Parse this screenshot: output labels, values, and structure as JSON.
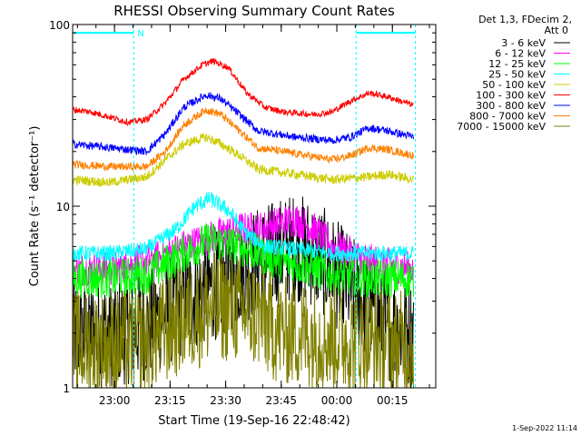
{
  "chart_data": {
    "type": "line",
    "title": "RHESSI Observing Summary Count Rates",
    "xlabel": "Start Time (19-Sep-16 22:48:42)",
    "ylabel": "Count Rate (s⁻¹ detector⁻¹)",
    "y_scale": "log",
    "ylim": [
      1,
      100
    ],
    "x_unit": "minutes after 22:48:42",
    "xlim": [
      0,
      98
    ],
    "x_ticks": [
      {
        "label": "23:00",
        "value": 11.3
      },
      {
        "label": "23:15",
        "value": 26.3
      },
      {
        "label": "23:30",
        "value": 41.3
      },
      {
        "label": "23:45",
        "value": 56.3
      },
      {
        "label": "00:00",
        "value": 71.3
      },
      {
        "label": "00:15",
        "value": 86.3
      }
    ],
    "y_ticks": [
      {
        "label": "1",
        "value": 1
      },
      {
        "label": "10",
        "value": 10
      },
      {
        "label": "100",
        "value": 100
      }
    ],
    "legend_header": [
      "Det 1,3, FDecim 2,",
      "Att 0"
    ],
    "data_start_min": 0,
    "data_end_min": 92,
    "gap_markers_min": [
      16.5,
      76.5,
      92.5
    ],
    "flag_bars": [
      {
        "x_start": 0,
        "x_end": 16.5,
        "value": 90,
        "label": "N",
        "color": "#00ffff"
      },
      {
        "x_start": 76.5,
        "x_end": 92.5,
        "value": 90,
        "label": "",
        "color": "#00ffff"
      }
    ],
    "series": [
      {
        "name": "3 - 6 keV",
        "color": "#000000",
        "noise": 0.7,
        "x": [
          0,
          10,
          20,
          30,
          40,
          45,
          50,
          55,
          60,
          65,
          70,
          75,
          80,
          85,
          92
        ],
        "y": [
          2.0,
          2.0,
          2.2,
          3.0,
          3.8,
          4.3,
          5.0,
          5.5,
          6.0,
          5.5,
          4.5,
          3.5,
          2.8,
          2.2,
          2.0
        ]
      },
      {
        "name": "6 - 12 keV",
        "color": "#ff00ff",
        "noise": 0.22,
        "x": [
          0,
          10,
          20,
          30,
          40,
          45,
          50,
          55,
          60,
          65,
          70,
          75,
          80,
          85,
          92
        ],
        "y": [
          4.5,
          4.5,
          5.0,
          6.0,
          7.0,
          7.5,
          7.5,
          8.0,
          8.5,
          7.5,
          6.0,
          5.5,
          5.0,
          4.8,
          4.5
        ]
      },
      {
        "name": "12 - 25 keV",
        "color": "#00ff00",
        "noise": 0.25,
        "x": [
          0,
          10,
          20,
          30,
          37,
          45,
          50,
          55,
          60,
          65,
          70,
          80,
          92
        ],
        "y": [
          4.0,
          4.0,
          4.2,
          5.5,
          6.5,
          6.0,
          5.5,
          5.0,
          4.8,
          4.5,
          4.2,
          4.0,
          4.0
        ]
      },
      {
        "name": "25 - 50 keV",
        "color": "#00ffff",
        "noise": 0.1,
        "x": [
          0,
          10,
          20,
          28,
          33,
          37,
          42,
          47,
          52,
          60,
          70,
          80,
          92
        ],
        "y": [
          5.5,
          5.5,
          5.8,
          7.5,
          10.0,
          11.0,
          9.5,
          7.0,
          6.0,
          5.8,
          5.5,
          5.5,
          5.5
        ]
      },
      {
        "name": "50 - 100 keV",
        "color": "#cccc00",
        "noise": 0.06,
        "x": [
          0,
          10,
          20,
          25,
          30,
          36,
          40,
          45,
          50,
          60,
          70,
          80,
          85,
          92
        ],
        "y": [
          14,
          13.5,
          14.5,
          18,
          22,
          24,
          22,
          19,
          16,
          15,
          14,
          14.5,
          15,
          14
        ]
      },
      {
        "name": "100 - 300 keV",
        "color": "#ff0000",
        "noise": 0.04,
        "x": [
          0,
          5,
          10,
          15,
          20,
          25,
          30,
          35,
          38,
          42,
          47,
          52,
          57,
          65,
          70,
          75,
          80,
          85,
          92
        ],
        "y": [
          34,
          33,
          31,
          29,
          30,
          37,
          50,
          60,
          63,
          58,
          42,
          35,
          33,
          32,
          33,
          38,
          42,
          40,
          36
        ]
      },
      {
        "name": "300 - 800 keV",
        "color": "#0000ff",
        "noise": 0.05,
        "x": [
          0,
          10,
          20,
          25,
          30,
          36,
          40,
          45,
          50,
          60,
          70,
          75,
          80,
          85,
          92
        ],
        "y": [
          22,
          21,
          20,
          25,
          35,
          41,
          39,
          32,
          26,
          24,
          23,
          24,
          27,
          26,
          24
        ]
      },
      {
        "name": "800 - 7000 keV",
        "color": "#ff8000",
        "noise": 0.05,
        "x": [
          0,
          10,
          20,
          25,
          30,
          36,
          40,
          45,
          50,
          60,
          70,
          75,
          80,
          85,
          92
        ],
        "y": [
          17,
          16.5,
          16.5,
          20,
          28,
          34,
          32,
          26,
          21,
          19.5,
          18,
          19,
          21,
          20.5,
          19
        ]
      },
      {
        "name": "7000 - 15000 keV",
        "color": "#808000",
        "noise": 0.7,
        "x": [
          0,
          10,
          20,
          30,
          40,
          45,
          50,
          55,
          60,
          70,
          80,
          92
        ],
        "y": [
          1.7,
          1.7,
          1.8,
          2.4,
          2.8,
          2.7,
          2.5,
          2.1,
          2.0,
          1.9,
          1.8,
          1.7
        ]
      }
    ],
    "timestamp": "1-Sep-2022 11:14"
  }
}
